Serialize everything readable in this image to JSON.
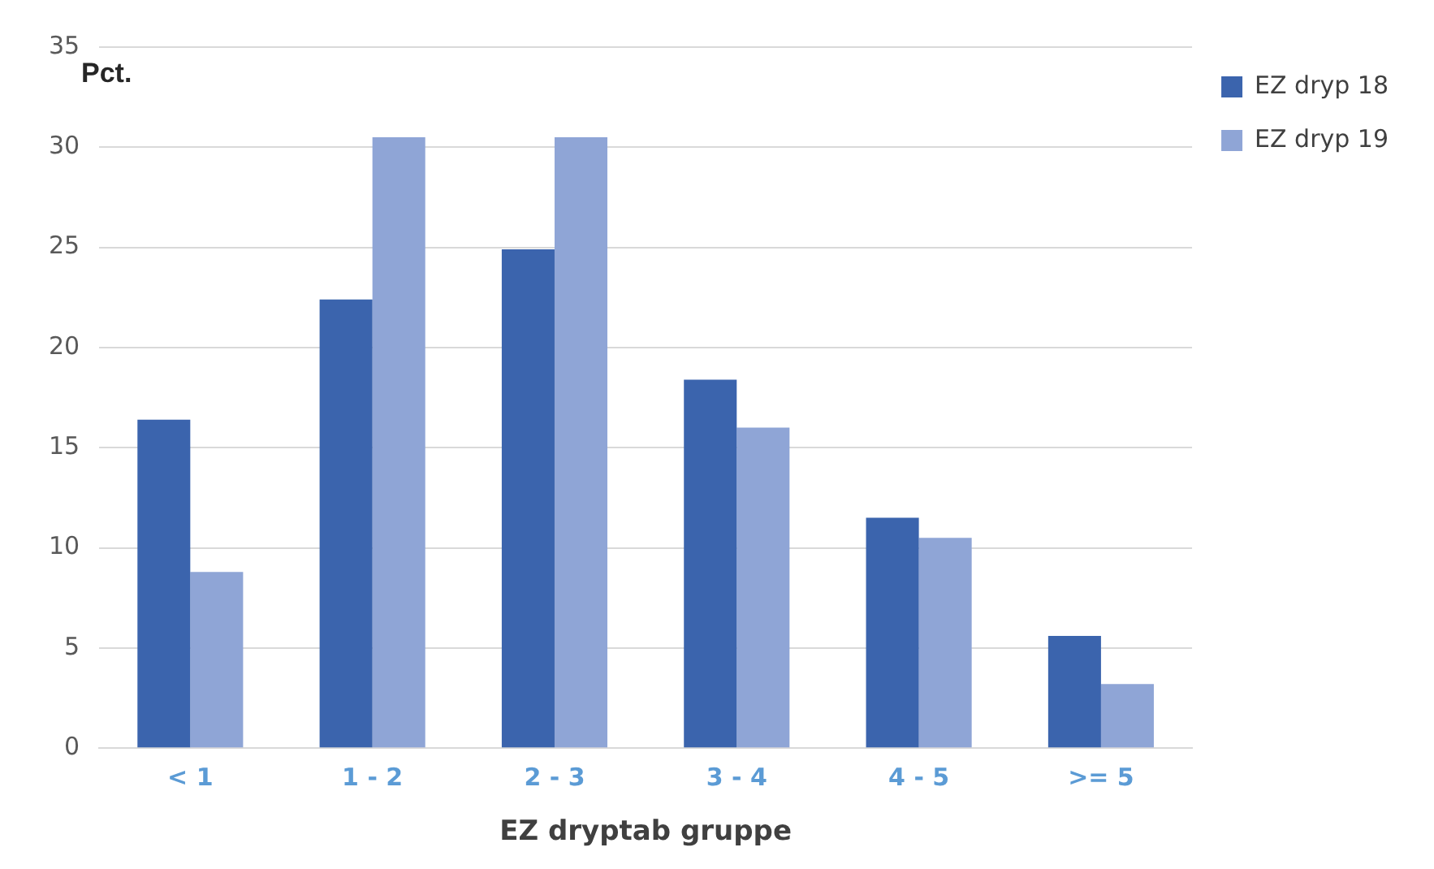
{
  "chart_data": {
    "type": "bar",
    "xlabel": "EZ dryptab gruppe",
    "ylabel": "Pct.",
    "categories": [
      "< 1",
      "1 - 2",
      "2 - 3",
      "3 - 4",
      "4 - 5",
      ">= 5"
    ],
    "series": [
      {
        "name": "EZ dryp 18",
        "color": "#3b64ad",
        "values": [
          16.4,
          22.4,
          24.9,
          18.4,
          11.5,
          5.6
        ]
      },
      {
        "name": "EZ dryp 19",
        "color": "#8fa5d6",
        "values": [
          8.8,
          30.5,
          30.5,
          16.0,
          10.5,
          3.2
        ]
      }
    ],
    "ylim": [
      0,
      35
    ],
    "yticks": [
      0,
      5,
      10,
      15,
      20,
      25,
      30,
      35
    ],
    "grid": "y",
    "legend": "top right"
  }
}
